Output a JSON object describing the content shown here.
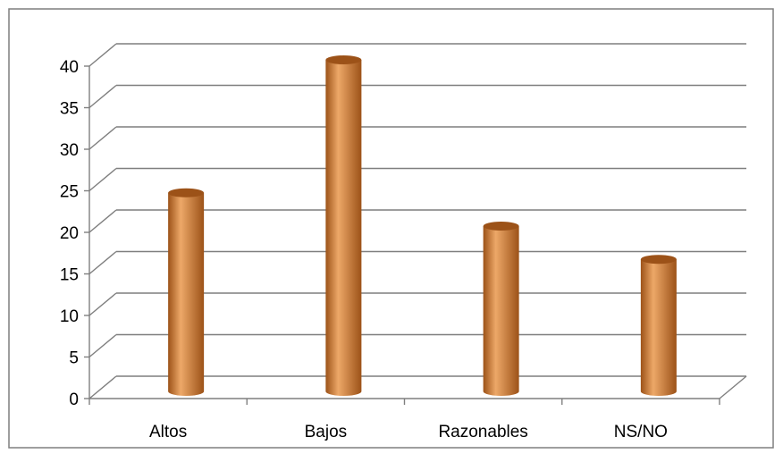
{
  "chart_data": {
    "type": "bar",
    "style": "3d-cylinder",
    "categories": [
      "Altos",
      "Bajos",
      "Razonables",
      "NS/NO"
    ],
    "values": [
      24,
      40,
      20,
      16
    ],
    "ylim": [
      0,
      40
    ],
    "yticks": [
      "0",
      "5",
      "10",
      "15",
      "20",
      "25",
      "30",
      "35",
      "40"
    ],
    "grid": true,
    "legend": "none",
    "colors": {
      "bar": "#d9843b",
      "bar_dark": "#9c5218",
      "bar_light": "#eda868",
      "grid": "#7f7f7f",
      "frame": "#7f7f7f"
    }
  }
}
